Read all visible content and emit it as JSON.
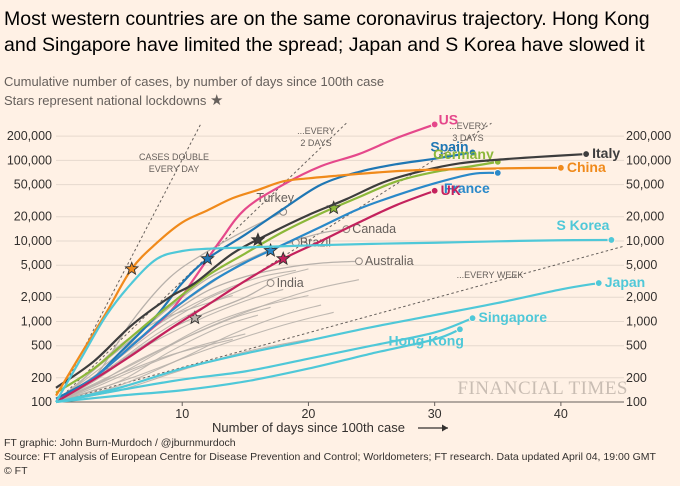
{
  "title": "Most western countries are on the same coronavirus trajectory. Hong Kong and Singapore have limited the spread; Japan and S Korea have slowed it",
  "subtitle": "Cumulative number of cases, by number of days since 100th case",
  "subtitle_note": "Stars represent national lockdowns",
  "star_icon": "star-icon",
  "watermark": "FINANCIAL TIMES",
  "footer": {
    "credit": "FT graphic: John Burn-Murdoch / @jburnmurdoch",
    "source": "Source: FT analysis of European Centre for Disease Prevention and Control; Worldometers; FT research. Data updated April 04, 19:00 GMT",
    "copyright": "© FT"
  },
  "chart_data": {
    "type": "line",
    "y_scale": "log",
    "xlabel": "Number of days since 100th case",
    "xlim": [
      0,
      45
    ],
    "ylim": [
      100,
      300000
    ],
    "x_ticks": [
      10,
      20,
      30,
      40
    ],
    "y_ticks": [
      100,
      200,
      500,
      1000,
      2000,
      5000,
      10000,
      20000,
      50000,
      100000,
      200000
    ],
    "y_tick_labels": [
      "100",
      "200",
      "500",
      "1,000",
      "2,000",
      "5,000",
      "10,000",
      "20,000",
      "50,000",
      "100,000",
      "200,000"
    ],
    "colors": {
      "US": "#e5488b",
      "Spain": "#1f77b4",
      "Germany": "#8cb83a",
      "Italy": "#3d3d3d",
      "China": "#f08a1b",
      "France": "#2a89c9",
      "UK": "#c4225d",
      "SKorea": "#4fc8d8",
      "Japan": "#4fc8d8",
      "Singapore": "#4fc8d8",
      "HongKong": "#4fc8d8",
      "Grey": "#b8b1ab",
      "Reference": "#66605c"
    },
    "reference_lines": [
      {
        "label": "CASES DOUBLE\nEVERY DAY",
        "doubling_days": 1
      },
      {
        "label": "...EVERY\n2 DAYS",
        "doubling_days": 2
      },
      {
        "label": "...EVERY\n3 DAYS",
        "doubling_days": 3
      },
      {
        "label": "...EVERY WEEK",
        "doubling_days": 7
      }
    ],
    "series": [
      {
        "name": "US",
        "highlight": true,
        "points": [
          [
            0,
            100
          ],
          [
            3,
            200
          ],
          [
            6,
            500
          ],
          [
            9,
            1300
          ],
          [
            11,
            3500
          ],
          [
            13,
            10000
          ],
          [
            15,
            25000
          ],
          [
            18,
            50000
          ],
          [
            21,
            85000
          ],
          [
            24,
            120000
          ],
          [
            27,
            190000
          ],
          [
            30,
            280000
          ]
        ],
        "lockdown_day": null,
        "label_pos": "right"
      },
      {
        "name": "Spain",
        "highlight": true,
        "points": [
          [
            0,
            110
          ],
          [
            3,
            200
          ],
          [
            5,
            400
          ],
          [
            8,
            1200
          ],
          [
            10,
            3000
          ],
          [
            12,
            6000
          ],
          [
            15,
            12000
          ],
          [
            18,
            25000
          ],
          [
            21,
            50000
          ],
          [
            24,
            72000
          ],
          [
            27,
            90000
          ],
          [
            30,
            105000
          ],
          [
            33,
            126000
          ]
        ],
        "lockdown_day": 12,
        "label_pos": "left"
      },
      {
        "name": "Germany",
        "highlight": true,
        "points": [
          [
            0,
            130
          ],
          [
            3,
            260
          ],
          [
            6,
            650
          ],
          [
            9,
            1600
          ],
          [
            12,
            3700
          ],
          [
            15,
            7000
          ],
          [
            18,
            13000
          ],
          [
            21,
            22000
          ],
          [
            24,
            35000
          ],
          [
            27,
            55000
          ],
          [
            30,
            72000
          ],
          [
            33,
            85000
          ],
          [
            35,
            96000
          ]
        ],
        "lockdown_day": 22,
        "label_pos": "right"
      },
      {
        "name": "Italy",
        "highlight": true,
        "points": [
          [
            0,
            150
          ],
          [
            3,
            320
          ],
          [
            6,
            900
          ],
          [
            9,
            2000
          ],
          [
            11,
            3000
          ],
          [
            14,
            7000
          ],
          [
            17,
            12500
          ],
          [
            20,
            21000
          ],
          [
            23,
            33000
          ],
          [
            26,
            54000
          ],
          [
            29,
            74000
          ],
          [
            32,
            92000
          ],
          [
            35,
            102000
          ],
          [
            38,
            110000
          ],
          [
            42,
            120000
          ]
        ],
        "lockdown_day": 16,
        "label_pos": "right"
      },
      {
        "name": "China",
        "highlight": true,
        "points": [
          [
            0,
            120
          ],
          [
            2,
            400
          ],
          [
            4,
            1300
          ],
          [
            6,
            4500
          ],
          [
            8,
            9500
          ],
          [
            10,
            17000
          ],
          [
            12,
            24000
          ],
          [
            14,
            34000
          ],
          [
            16,
            43000
          ],
          [
            18,
            55000
          ],
          [
            20,
            60000
          ],
          [
            22,
            64000
          ],
          [
            25,
            70000
          ],
          [
            28,
            75000
          ],
          [
            32,
            78000
          ],
          [
            36,
            80000
          ],
          [
            40,
            81000
          ]
        ],
        "lockdown_day": 6,
        "label_pos": "right"
      },
      {
        "name": "France",
        "highlight": true,
        "points": [
          [
            0,
            100
          ],
          [
            3,
            200
          ],
          [
            6,
            500
          ],
          [
            9,
            1300
          ],
          [
            12,
            2900
          ],
          [
            15,
            5400
          ],
          [
            18,
            9000
          ],
          [
            21,
            15000
          ],
          [
            24,
            25000
          ],
          [
            27,
            37000
          ],
          [
            30,
            52000
          ],
          [
            33,
            68000
          ],
          [
            35,
            70000
          ]
        ],
        "lockdown_day": 17,
        "label_pos": "below"
      },
      {
        "name": "UK",
        "highlight": true,
        "points": [
          [
            0,
            100
          ],
          [
            3,
            190
          ],
          [
            6,
            380
          ],
          [
            9,
            800
          ],
          [
            12,
            1600
          ],
          [
            15,
            3200
          ],
          [
            18,
            6000
          ],
          [
            21,
            10000
          ],
          [
            24,
            17000
          ],
          [
            27,
            28000
          ],
          [
            30,
            42000
          ]
        ],
        "lockdown_day": 18,
        "label_pos": "right"
      },
      {
        "name": "S Korea",
        "highlight": true,
        "points": [
          [
            0,
            100
          ],
          [
            2,
            350
          ],
          [
            4,
            1200
          ],
          [
            6,
            3000
          ],
          [
            8,
            6000
          ],
          [
            10,
            7500
          ],
          [
            12,
            8000
          ],
          [
            15,
            8300
          ],
          [
            20,
            8800
          ],
          [
            25,
            9200
          ],
          [
            30,
            9500
          ],
          [
            35,
            9900
          ],
          [
            40,
            10200
          ],
          [
            44,
            10300
          ]
        ],
        "lockdown_day": null,
        "label_pos": "above"
      },
      {
        "name": "Japan",
        "highlight": true,
        "points": [
          [
            0,
            100
          ],
          [
            5,
            150
          ],
          [
            10,
            260
          ],
          [
            15,
            400
          ],
          [
            20,
            580
          ],
          [
            25,
            850
          ],
          [
            30,
            1200
          ],
          [
            35,
            1700
          ],
          [
            40,
            2500
          ],
          [
            43,
            3000
          ]
        ],
        "lockdown_day": null,
        "label_pos": "right"
      },
      {
        "name": "Singapore",
        "highlight": true,
        "points": [
          [
            0,
            100
          ],
          [
            5,
            140
          ],
          [
            10,
            190
          ],
          [
            15,
            240
          ],
          [
            20,
            345
          ],
          [
            25,
            500
          ],
          [
            30,
            730
          ],
          [
            33,
            1100
          ]
        ],
        "lockdown_day": null,
        "label_pos": "right"
      },
      {
        "name": "Hong Kong",
        "highlight": true,
        "points": [
          [
            0,
            100
          ],
          [
            5,
            120
          ],
          [
            10,
            140
          ],
          [
            15,
            180
          ],
          [
            20,
            260
          ],
          [
            25,
            400
          ],
          [
            30,
            600
          ],
          [
            32,
            800
          ]
        ],
        "lockdown_day": null,
        "label_pos": "below"
      },
      {
        "name": "Turkey",
        "highlight": false,
        "points": [
          [
            0,
            100
          ],
          [
            3,
            200
          ],
          [
            6,
            1000
          ],
          [
            9,
            3500
          ],
          [
            12,
            7400
          ],
          [
            15,
            13500
          ],
          [
            18,
            23000
          ]
        ],
        "lockdown_day": null,
        "label_pos": "above"
      },
      {
        "name": "Canada",
        "highlight": false,
        "points": [
          [
            0,
            100
          ],
          [
            3,
            200
          ],
          [
            6,
            500
          ],
          [
            9,
            1300
          ],
          [
            12,
            2800
          ],
          [
            15,
            5600
          ],
          [
            18,
            9000
          ],
          [
            21,
            12500
          ],
          [
            23,
            14000
          ]
        ],
        "lockdown_day": null,
        "label_pos": "right"
      },
      {
        "name": "Brazil",
        "highlight": false,
        "points": [
          [
            0,
            100
          ],
          [
            3,
            250
          ],
          [
            6,
            600
          ],
          [
            9,
            1500
          ],
          [
            12,
            3400
          ],
          [
            15,
            5700
          ],
          [
            18,
            9000
          ],
          [
            19,
            9500
          ]
        ],
        "lockdown_day": null,
        "label_pos": "right"
      },
      {
        "name": "Australia",
        "highlight": false,
        "points": [
          [
            0,
            100
          ],
          [
            3,
            200
          ],
          [
            6,
            500
          ],
          [
            9,
            1200
          ],
          [
            12,
            2400
          ],
          [
            15,
            3600
          ],
          [
            18,
            4600
          ],
          [
            21,
            5300
          ],
          [
            24,
            5600
          ]
        ],
        "lockdown_day": null,
        "label_pos": "right"
      },
      {
        "name": "India",
        "highlight": false,
        "points": [
          [
            0,
            100
          ],
          [
            3,
            190
          ],
          [
            6,
            400
          ],
          [
            9,
            800
          ],
          [
            12,
            1300
          ],
          [
            15,
            2000
          ],
          [
            17,
            3000
          ]
        ],
        "lockdown_day": 11,
        "label_pos": "right"
      }
    ],
    "background_series": [
      [
        [
          0,
          100
        ],
        [
          4,
          250
        ],
        [
          8,
          700
        ],
        [
          12,
          1600
        ],
        [
          16,
          3000
        ],
        [
          20,
          4500
        ]
      ],
      [
        [
          0,
          100
        ],
        [
          4,
          300
        ],
        [
          8,
          900
        ],
        [
          12,
          2000
        ],
        [
          16,
          3500
        ],
        [
          19,
          4300
        ]
      ],
      [
        [
          0,
          100
        ],
        [
          5,
          220
        ],
        [
          10,
          600
        ],
        [
          15,
          1300
        ],
        [
          20,
          2400
        ],
        [
          24,
          3300
        ]
      ],
      [
        [
          0,
          100
        ],
        [
          3,
          180
        ],
        [
          7,
          480
        ],
        [
          11,
          1000
        ],
        [
          15,
          1800
        ],
        [
          18,
          2500
        ]
      ],
      [
        [
          0,
          100
        ],
        [
          4,
          200
        ],
        [
          8,
          420
        ],
        [
          12,
          900
        ],
        [
          16,
          1500
        ],
        [
          20,
          2100
        ]
      ],
      [
        [
          0,
          100
        ],
        [
          5,
          160
        ],
        [
          10,
          350
        ],
        [
          14,
          700
        ],
        [
          18,
          1200
        ],
        [
          21,
          1600
        ]
      ],
      [
        [
          0,
          100
        ],
        [
          3,
          160
        ],
        [
          6,
          300
        ],
        [
          10,
          600
        ],
        [
          14,
          1100
        ],
        [
          17,
          1500
        ]
      ],
      [
        [
          0,
          100
        ],
        [
          4,
          270
        ],
        [
          8,
          800
        ],
        [
          12,
          1900
        ],
        [
          14,
          2600
        ]
      ],
      [
        [
          0,
          100
        ],
        [
          5,
          180
        ],
        [
          9,
          420
        ],
        [
          13,
          850
        ],
        [
          16,
          1200
        ]
      ],
      [
        [
          0,
          100
        ],
        [
          6,
          200
        ],
        [
          12,
          450
        ],
        [
          18,
          900
        ],
        [
          22,
          1300
        ]
      ],
      [
        [
          0,
          100
        ],
        [
          3,
          150
        ],
        [
          7,
          280
        ],
        [
          11,
          480
        ],
        [
          15,
          700
        ]
      ],
      [
        [
          0,
          100
        ],
        [
          4,
          190
        ],
        [
          9,
          380
        ],
        [
          14,
          600
        ]
      ],
      [
        [
          0,
          100
        ],
        [
          2,
          180
        ],
        [
          5,
          500
        ],
        [
          8,
          1000
        ],
        [
          11,
          1500
        ],
        [
          14,
          2100
        ]
      ],
      [
        [
          0,
          100
        ],
        [
          5,
          140
        ],
        [
          10,
          250
        ],
        [
          15,
          420
        ],
        [
          20,
          600
        ]
      ]
    ]
  }
}
